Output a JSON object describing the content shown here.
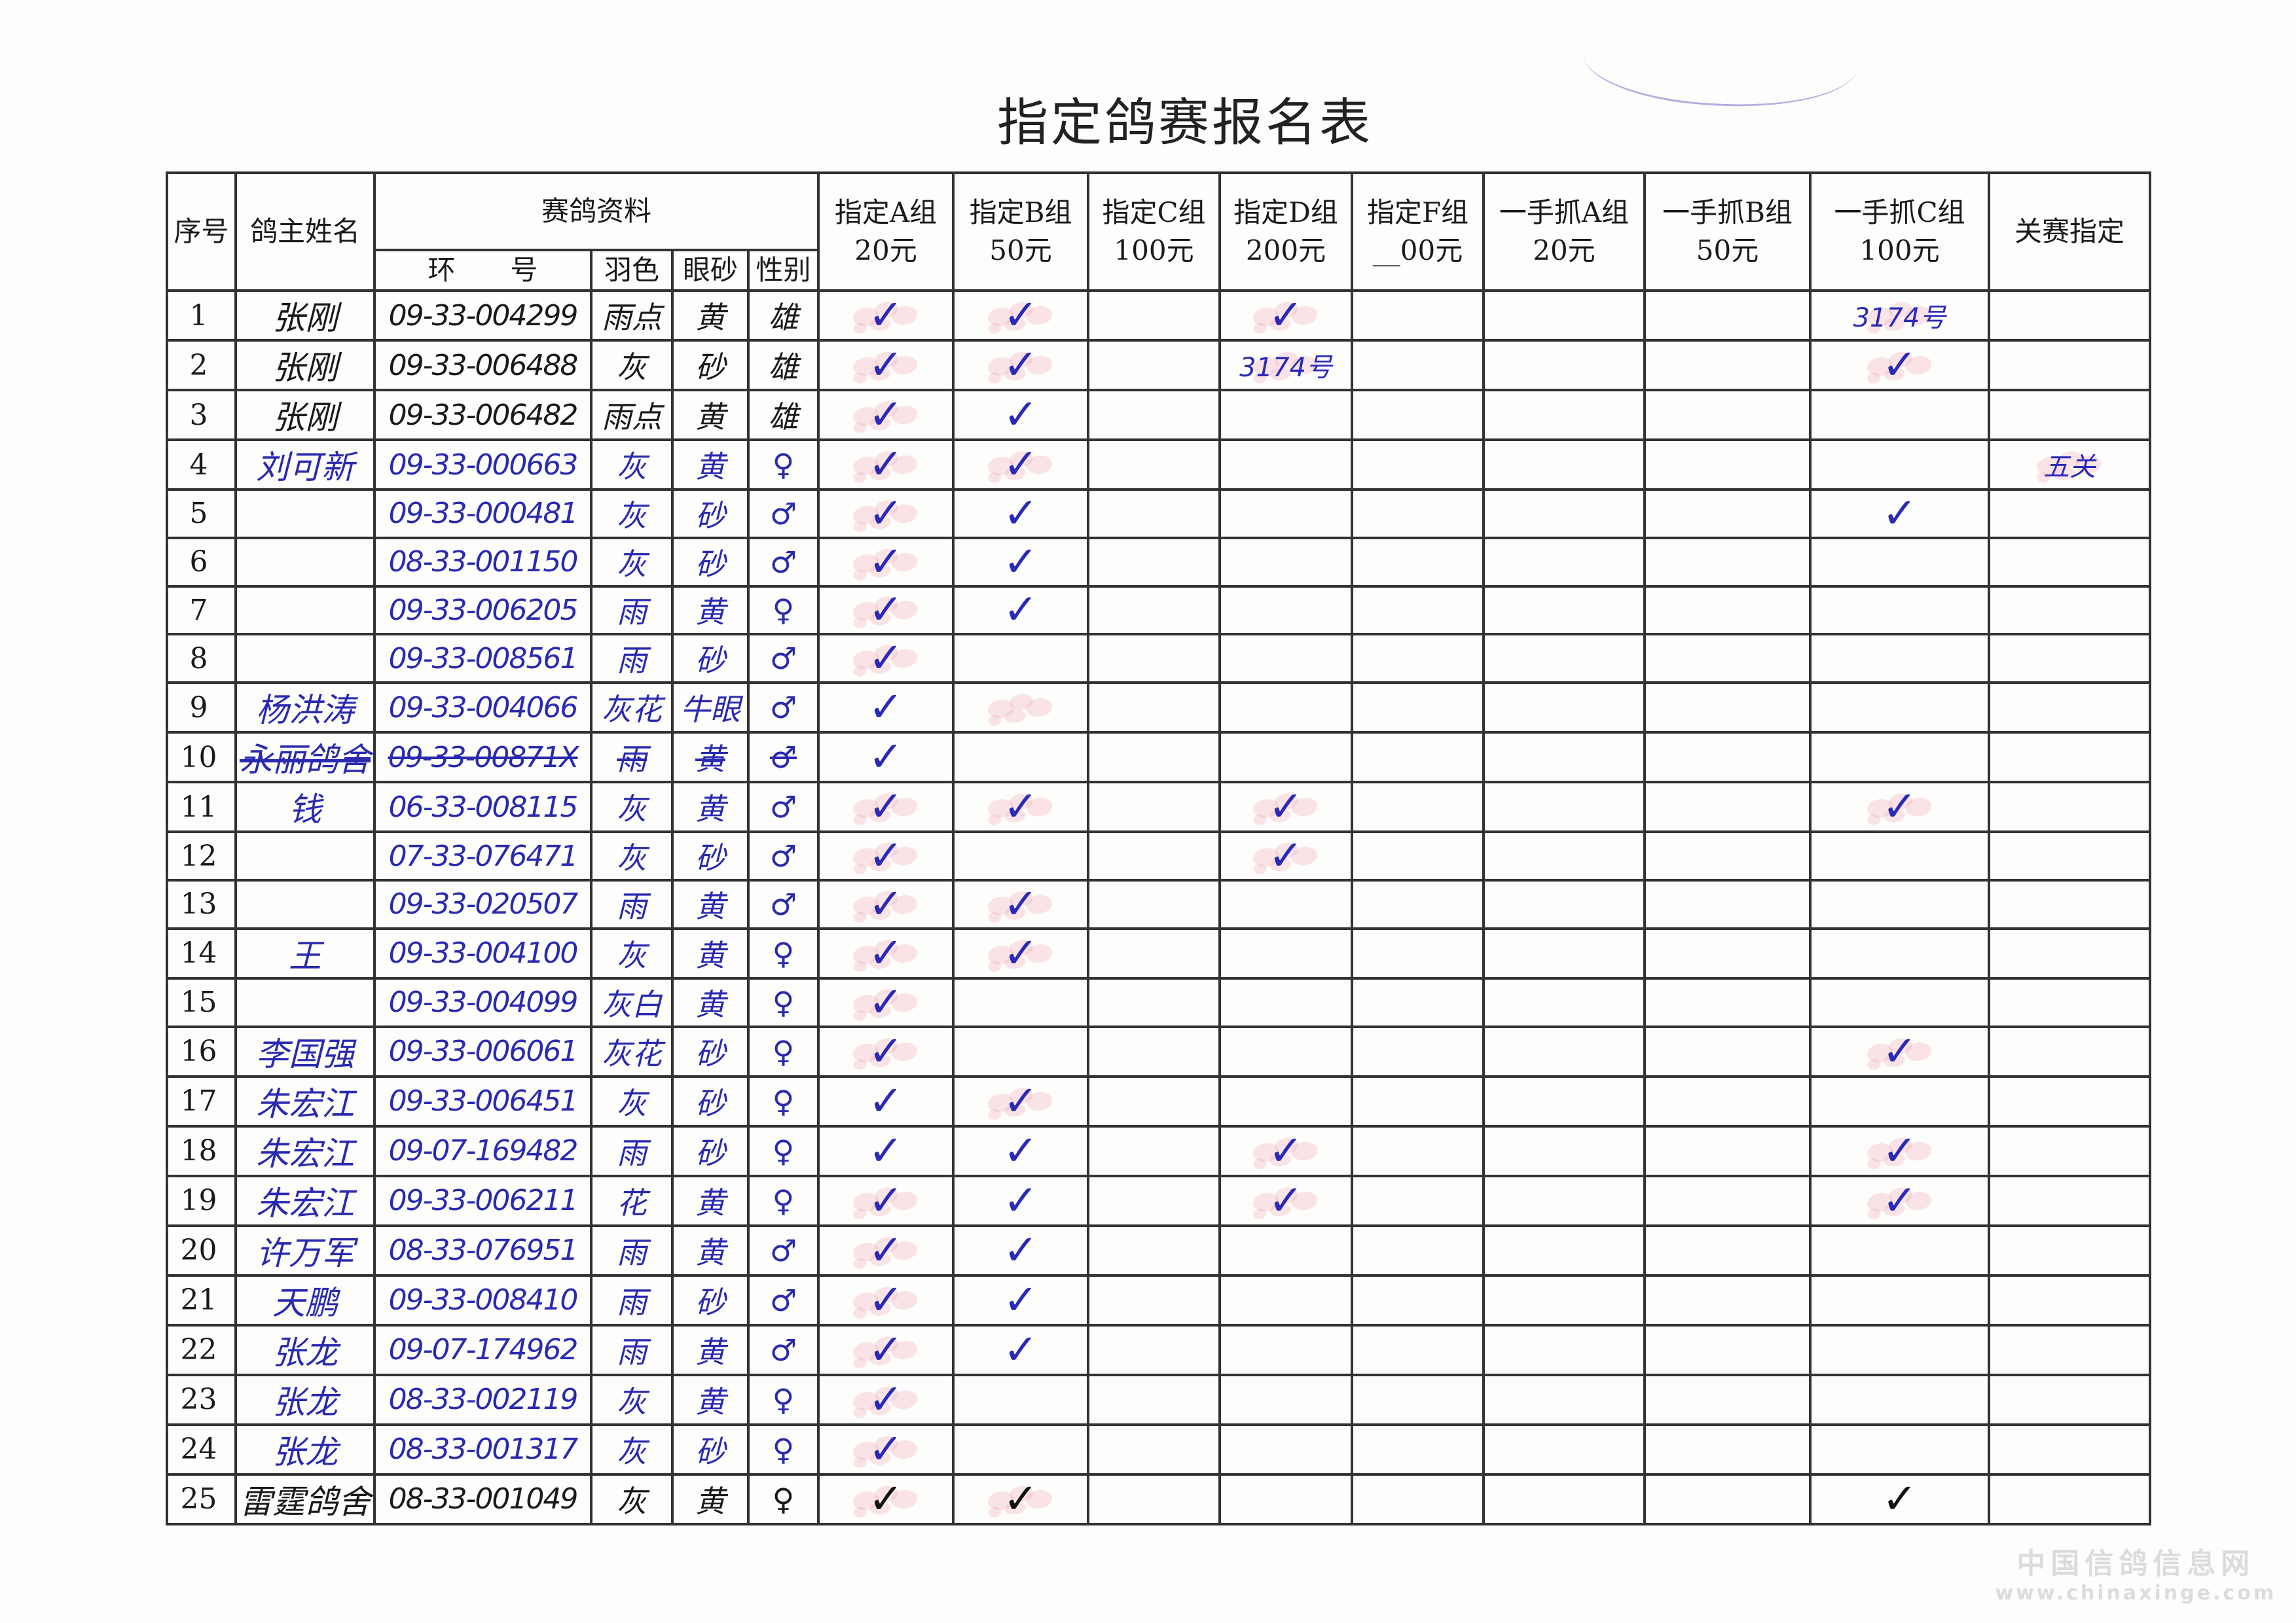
{
  "title": "指定鸽赛报名表",
  "header": {
    "seq": "序号",
    "owner": "鸽主姓名",
    "bird_info": "赛鸽资料",
    "ring": "环　　号",
    "color": "羽色",
    "eye": "眼砂",
    "sex": "性别",
    "groups": [
      {
        "key": "A",
        "name": "指定A组",
        "fee": "20元"
      },
      {
        "key": "B",
        "name": "指定B组",
        "fee": "50元"
      },
      {
        "key": "C",
        "name": "指定C组",
        "fee": "100元"
      },
      {
        "key": "D",
        "name": "指定D组",
        "fee": "200元"
      },
      {
        "key": "F",
        "name": "指定F组",
        "fee": "__00元"
      },
      {
        "key": "GA",
        "name": "一手抓A组",
        "fee": "20元"
      },
      {
        "key": "GB",
        "name": "一手抓B组",
        "fee": "50元"
      },
      {
        "key": "GC",
        "name": "一手抓C组",
        "fee": "100元"
      },
      {
        "key": "GS",
        "name": "关赛指定",
        "fee": ""
      }
    ]
  },
  "check_mark": "✓",
  "stamp_text": "指定",
  "ink_colors": {
    "blue": "#2a2ab0",
    "black": "#1a1a1a",
    "stamp_red": "#f2a0b0"
  },
  "rows": [
    {
      "no": "1",
      "owner": "张刚",
      "ring": "09-33-004299",
      "color": "雨点",
      "eye": "黄",
      "sex": "雄",
      "ink": "black",
      "checks": [
        "A",
        "B",
        "D"
      ],
      "stamps": [
        "A",
        "B",
        "D",
        "GC"
      ],
      "notes": {
        "GC": "3174号"
      }
    },
    {
      "no": "2",
      "owner": "张刚",
      "ring": "09-33-006488",
      "color": "灰",
      "eye": "砂",
      "sex": "雄",
      "ink": "black",
      "checks": [
        "A",
        "B",
        "GC"
      ],
      "stamps": [
        "A",
        "B",
        "D",
        "GC"
      ],
      "notes": {
        "D": "3174号"
      }
    },
    {
      "no": "3",
      "owner": "张刚",
      "ring": "09-33-006482",
      "color": "雨点",
      "eye": "黄",
      "sex": "雄",
      "ink": "black",
      "checks": [
        "A",
        "B"
      ],
      "stamps": [
        "A"
      ],
      "notes": {}
    },
    {
      "no": "4",
      "owner": "刘可新",
      "ring": "09-33-000663",
      "color": "灰",
      "eye": "黄",
      "sex": "♀",
      "ink": "blue",
      "checks": [
        "A",
        "B"
      ],
      "stamps": [
        "A",
        "B",
        "GS"
      ],
      "notes": {
        "GS": "五关"
      }
    },
    {
      "no": "5",
      "owner": "",
      "ring": "09-33-000481",
      "color": "灰",
      "eye": "砂",
      "sex": "♂",
      "ink": "blue",
      "checks": [
        "A",
        "B",
        "GC"
      ],
      "stamps": [
        "A"
      ],
      "notes": {}
    },
    {
      "no": "6",
      "owner": "",
      "ring": "08-33-001150",
      "color": "灰",
      "eye": "砂",
      "sex": "♂",
      "ink": "blue",
      "checks": [
        "A",
        "B"
      ],
      "stamps": [
        "A"
      ],
      "notes": {}
    },
    {
      "no": "7",
      "owner": "",
      "ring": "09-33-006205",
      "color": "雨",
      "eye": "黄",
      "sex": "♀",
      "ink": "blue",
      "checks": [
        "A",
        "B"
      ],
      "stamps": [
        "A"
      ],
      "notes": {}
    },
    {
      "no": "8",
      "owner": "",
      "ring": "09-33-008561",
      "color": "雨",
      "eye": "砂",
      "sex": "♂",
      "ink": "blue",
      "checks": [
        "A"
      ],
      "stamps": [
        "A"
      ],
      "notes": {}
    },
    {
      "no": "9",
      "owner": "杨洪涛",
      "ring": "09-33-004066",
      "color": "灰花",
      "eye": "牛眼",
      "sex": "♂",
      "ink": "blue",
      "checks": [
        "A"
      ],
      "stamps": [
        "B"
      ],
      "notes": {}
    },
    {
      "no": "10",
      "owner": "永丽鸽舍",
      "ring": "09-33-00871X",
      "color": "雨",
      "eye": "黄",
      "sex": "♂",
      "ink": "blue",
      "strike": true,
      "checks": [
        "A"
      ],
      "stamps": [],
      "notes": {}
    },
    {
      "no": "11",
      "owner": "钱",
      "ring": "06-33-008115",
      "color": "灰",
      "eye": "黄",
      "sex": "♂",
      "ink": "blue",
      "checks": [
        "A",
        "B",
        "D",
        "GC"
      ],
      "stamps": [
        "A",
        "B",
        "D",
        "GC"
      ],
      "notes": {}
    },
    {
      "no": "12",
      "owner": "",
      "ring": "07-33-076471",
      "color": "灰",
      "eye": "砂",
      "sex": "♂",
      "ink": "blue",
      "checks": [
        "A",
        "D"
      ],
      "stamps": [
        "A",
        "D"
      ],
      "notes": {}
    },
    {
      "no": "13",
      "owner": "",
      "ring": "09-33-020507",
      "color": "雨",
      "eye": "黄",
      "sex": "♂",
      "ink": "blue",
      "checks": [
        "A",
        "B"
      ],
      "stamps": [
        "A",
        "B"
      ],
      "notes": {}
    },
    {
      "no": "14",
      "owner": "王",
      "ring": "09-33-004100",
      "color": "灰",
      "eye": "黄",
      "sex": "♀",
      "ink": "blue",
      "checks": [
        "A",
        "B"
      ],
      "stamps": [
        "A",
        "B"
      ],
      "notes": {}
    },
    {
      "no": "15",
      "owner": "",
      "ring": "09-33-004099",
      "color": "灰白",
      "eye": "黄",
      "sex": "♀",
      "ink": "blue",
      "checks": [
        "A"
      ],
      "stamps": [
        "A"
      ],
      "notes": {}
    },
    {
      "no": "16",
      "owner": "李国强",
      "ring": "09-33-006061",
      "color": "灰花",
      "eye": "砂",
      "sex": "♀",
      "ink": "blue",
      "checks": [
        "A",
        "GC"
      ],
      "stamps": [
        "A",
        "GC"
      ],
      "notes": {}
    },
    {
      "no": "17",
      "owner": "朱宏江",
      "ring": "09-33-006451",
      "color": "灰",
      "eye": "砂",
      "sex": "♀",
      "ink": "blue",
      "checks": [
        "A",
        "B"
      ],
      "stamps": [
        "B"
      ],
      "notes": {}
    },
    {
      "no": "18",
      "owner": "朱宏江",
      "ring": "09-07-169482",
      "color": "雨",
      "eye": "砂",
      "sex": "♀",
      "ink": "blue",
      "checks": [
        "A",
        "B",
        "D",
        "GC"
      ],
      "stamps": [
        "D",
        "GC"
      ],
      "notes": {}
    },
    {
      "no": "19",
      "owner": "朱宏江",
      "ring": "09-33-006211",
      "color": "花",
      "eye": "黄",
      "sex": "♀",
      "ink": "blue",
      "checks": [
        "A",
        "B",
        "D",
        "GC"
      ],
      "stamps": [
        "A",
        "D",
        "GC"
      ],
      "notes": {}
    },
    {
      "no": "20",
      "owner": "许万军",
      "ring": "08-33-076951",
      "color": "雨",
      "eye": "黄",
      "sex": "♂",
      "ink": "blue",
      "checks": [
        "A",
        "B"
      ],
      "stamps": [
        "A"
      ],
      "notes": {}
    },
    {
      "no": "21",
      "owner": "天鹏",
      "ring": "09-33-008410",
      "color": "雨",
      "eye": "砂",
      "sex": "♂",
      "ink": "blue",
      "checks": [
        "A",
        "B"
      ],
      "stamps": [
        "A"
      ],
      "notes": {}
    },
    {
      "no": "22",
      "owner": "张龙",
      "ring": "09-07-174962",
      "color": "雨",
      "eye": "黄",
      "sex": "♂",
      "ink": "blue",
      "checks": [
        "A",
        "B"
      ],
      "stamps": [
        "A"
      ],
      "notes": {}
    },
    {
      "no": "23",
      "owner": "张龙",
      "ring": "08-33-002119",
      "color": "灰",
      "eye": "黄",
      "sex": "♀",
      "ink": "blue",
      "checks": [
        "A"
      ],
      "stamps": [
        "A"
      ],
      "notes": {}
    },
    {
      "no": "24",
      "owner": "张龙",
      "ring": "08-33-001317",
      "color": "灰",
      "eye": "砂",
      "sex": "♀",
      "ink": "blue",
      "checks": [
        "A"
      ],
      "stamps": [
        "A"
      ],
      "notes": {}
    },
    {
      "no": "25",
      "owner": "雷霆鸽舍",
      "ring": "08-33-001049",
      "color": "灰",
      "eye": "黄",
      "sex": "♀",
      "ink": "black",
      "checks": [
        "A",
        "B",
        "GC"
      ],
      "stamps": [
        "A",
        "B"
      ],
      "notes": {}
    }
  ],
  "watermark": {
    "line1": "中国信鸽信息网",
    "line2": "www.chinaxinge.com"
  }
}
